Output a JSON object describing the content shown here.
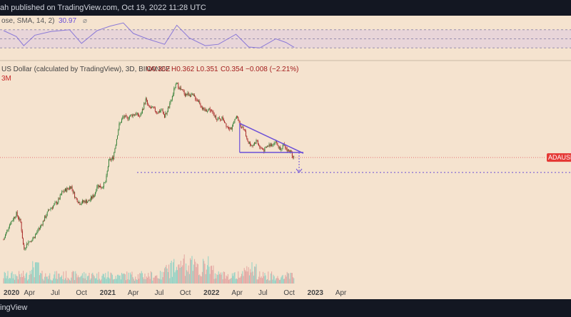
{
  "publisher_line": "ah published on TradingView.com, Oct 19, 2022 11:28 UTC",
  "footer_brand": "ingView",
  "rsi": {
    "legend": "ose, SMA, 14, 2)",
    "value": "30.97",
    "levels": [
      70,
      50,
      30
    ]
  },
  "price_header": {
    "symbol_line": "US Dollar (calculated by TradingView), 3D, BINANCE",
    "o": "O0.362",
    "h": "H0.362",
    "l": "L0.351",
    "c": "C0.354",
    "change": "−0.008 (−2.21%)",
    "volume": "3M"
  },
  "ticker_tag": "ADAUSD",
  "colors": {
    "background": "#f5e3cf",
    "bull": "#2e7d32",
    "bear": "#a31d1d",
    "pattern": "#6b4fd8",
    "rsi_line": "#8a79d8",
    "vol_up": "#8fd1c4",
    "vol_down": "#e3a5a1",
    "price_line": "#e57373"
  },
  "chart_data": {
    "type": "candlestick",
    "x_tick_labels": [
      "2020",
      "Apr",
      "Jul",
      "Oct",
      "2021",
      "Apr",
      "Jul",
      "Oct",
      "2022",
      "Apr",
      "Jul",
      "Oct",
      "2023",
      "Apr"
    ],
    "price_series": [
      [
        "2020-01-01",
        0.033
      ],
      [
        "2020-01-20",
        0.05
      ],
      [
        "2020-02-15",
        0.07
      ],
      [
        "2020-03-01",
        0.055
      ],
      [
        "2020-03-12",
        0.025
      ],
      [
        "2020-03-25",
        0.03
      ],
      [
        "2020-04-15",
        0.035
      ],
      [
        "2020-05-05",
        0.045
      ],
      [
        "2020-06-10",
        0.08
      ],
      [
        "2020-06-20",
        0.085
      ],
      [
        "2020-07-10",
        0.1
      ],
      [
        "2020-07-25",
        0.13
      ],
      [
        "2020-08-15",
        0.145
      ],
      [
        "2020-08-25",
        0.155
      ],
      [
        "2020-09-10",
        0.11
      ],
      [
        "2020-09-25",
        0.095
      ],
      [
        "2020-10-10",
        0.1
      ],
      [
        "2020-10-25",
        0.1
      ],
      [
        "2020-11-15",
        0.12
      ],
      [
        "2020-11-25",
        0.16
      ],
      [
        "2020-12-10",
        0.15
      ],
      [
        "2020-12-25",
        0.175
      ],
      [
        "2021-01-05",
        0.32
      ],
      [
        "2021-01-20",
        0.35
      ],
      [
        "2021-02-10",
        0.9
      ],
      [
        "2021-02-25",
        1.15
      ],
      [
        "2021-03-10",
        1.1
      ],
      [
        "2021-03-25",
        1.2
      ],
      [
        "2021-04-10",
        1.25
      ],
      [
        "2021-04-25",
        1.15
      ],
      [
        "2021-05-15",
        1.9
      ],
      [
        "2021-05-25",
        1.5
      ],
      [
        "2021-06-10",
        1.45
      ],
      [
        "2021-06-25",
        1.3
      ],
      [
        "2021-07-10",
        1.4
      ],
      [
        "2021-07-20",
        1.15
      ],
      [
        "2021-08-10",
        1.7
      ],
      [
        "2021-08-25",
        2.7
      ],
      [
        "2021-09-02",
        2.95
      ],
      [
        "2021-09-15",
        2.5
      ],
      [
        "2021-10-01",
        2.2
      ],
      [
        "2021-10-15",
        2.2
      ],
      [
        "2021-11-01",
        2.05
      ],
      [
        "2021-11-20",
        1.75
      ],
      [
        "2021-12-05",
        1.35
      ],
      [
        "2021-12-25",
        1.45
      ],
      [
        "2022-01-10",
        1.2
      ],
      [
        "2022-01-25",
        1.05
      ],
      [
        "2022-02-10",
        1.1
      ],
      [
        "2022-02-25",
        0.87
      ],
      [
        "2022-03-15",
        0.82
      ],
      [
        "2022-03-28",
        1.18
      ],
      [
        "2022-04-10",
        0.95
      ],
      [
        "2022-04-25",
        0.8
      ],
      [
        "2022-05-10",
        0.55
      ],
      [
        "2022-05-25",
        0.5
      ],
      [
        "2022-06-10",
        0.58
      ],
      [
        "2022-06-20",
        0.47
      ],
      [
        "2022-07-05",
        0.44
      ],
      [
        "2022-07-20",
        0.5
      ],
      [
        "2022-08-05",
        0.53
      ],
      [
        "2022-08-15",
        0.56
      ],
      [
        "2022-08-28",
        0.46
      ],
      [
        "2022-09-10",
        0.5
      ],
      [
        "2022-09-25",
        0.44
      ],
      [
        "2022-10-05",
        0.42
      ],
      [
        "2022-10-19",
        0.354
      ]
    ],
    "rsi_series": [
      [
        "2020-01-01",
        68
      ],
      [
        "2020-02-15",
        55
      ],
      [
        "2020-03-12",
        35
      ],
      [
        "2020-04-20",
        58
      ],
      [
        "2020-06-15",
        66
      ],
      [
        "2020-08-20",
        70
      ],
      [
        "2020-10-01",
        40
      ],
      [
        "2020-11-25",
        68
      ],
      [
        "2021-01-10",
        78
      ],
      [
        "2021-02-25",
        85
      ],
      [
        "2021-04-01",
        62
      ],
      [
        "2021-05-20",
        50
      ],
      [
        "2021-07-20",
        38
      ],
      [
        "2021-09-01",
        80
      ],
      [
        "2021-10-15",
        52
      ],
      [
        "2021-12-10",
        35
      ],
      [
        "2022-01-25",
        38
      ],
      [
        "2022-03-28",
        60
      ],
      [
        "2022-05-12",
        32
      ],
      [
        "2022-06-20",
        30
      ],
      [
        "2022-08-15",
        50
      ],
      [
        "2022-09-20",
        42
      ],
      [
        "2022-10-19",
        30.97
      ]
    ],
    "annotations": {
      "descending_triangle": {
        "upper": [
          [
            "2022-04-10",
            0.95
          ],
          [
            "2022-11-20",
            0.4
          ]
        ],
        "lower": [
          [
            "2022-04-10",
            0.41
          ],
          [
            "2022-11-20",
            0.41
          ]
        ]
      },
      "target_level": 0.23,
      "current_price": 0.354
    }
  }
}
